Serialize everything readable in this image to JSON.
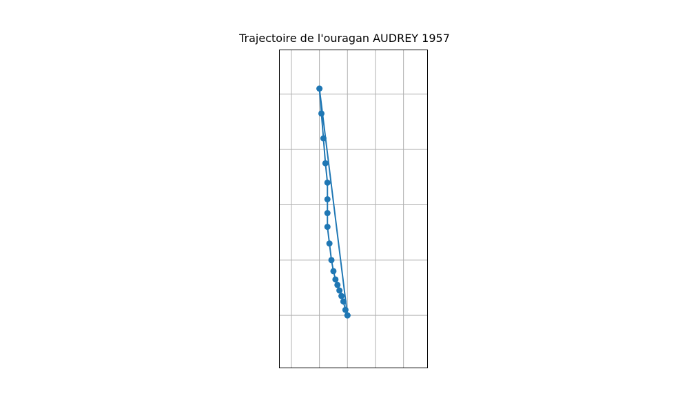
{
  "chart_data": {
    "type": "line",
    "title": "Trajectoire de l'ouragan AUDREY 1957",
    "xlabel": "",
    "ylabel": "",
    "xlim": [
      -95.4,
      -88.0
    ],
    "ylim": [
      24.5,
      36.0
    ],
    "grid": true,
    "x_gridlines": [
      -94.8,
      -93.4,
      -92.0,
      -90.6,
      -89.2
    ],
    "y_gridlines": [
      34.4,
      32.4,
      30.4,
      28.4,
      26.4
    ],
    "markers": true,
    "series": [
      {
        "color": "#1f77b4",
        "points": [
          [
            -92.0,
            26.4
          ],
          [
            -92.1,
            26.6
          ],
          [
            -92.2,
            26.9
          ],
          [
            -92.3,
            27.1
          ],
          [
            -92.4,
            27.3
          ],
          [
            -92.5,
            27.5
          ],
          [
            -92.6,
            27.7
          ],
          [
            -92.7,
            28.0
          ],
          [
            -92.8,
            28.4
          ],
          [
            -92.9,
            29.0
          ],
          [
            -93.0,
            29.6
          ],
          [
            -93.0,
            30.1
          ],
          [
            -93.0,
            30.6
          ],
          [
            -93.0,
            31.2
          ],
          [
            -93.1,
            31.9
          ],
          [
            -93.2,
            32.8
          ],
          [
            -93.3,
            33.7
          ],
          [
            -93.4,
            34.6
          ],
          [
            -92.0,
            26.4
          ]
        ]
      }
    ]
  }
}
